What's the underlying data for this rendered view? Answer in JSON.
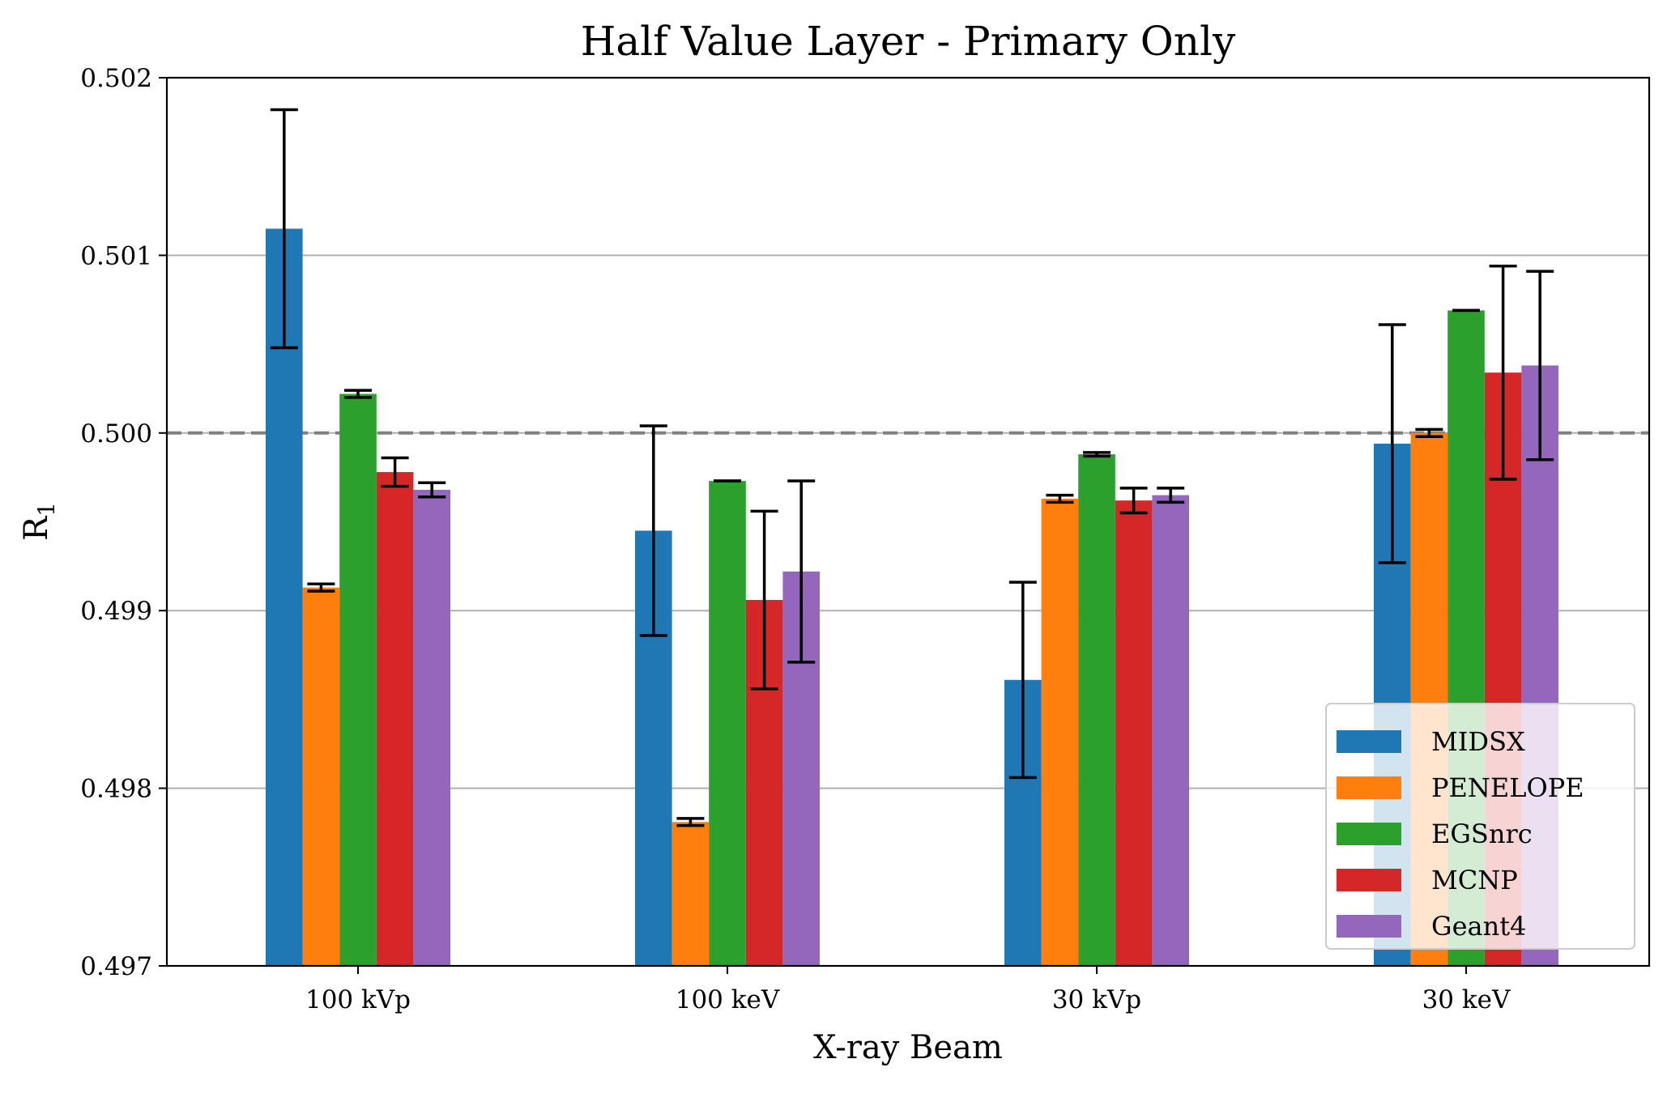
{
  "chart_data": {
    "type": "bar",
    "title": "Half Value Layer - Primary Only",
    "xlabel": "X-ray Beam",
    "ylabel": "R",
    "ylabel_subscript": "1",
    "categories": [
      "100 kVp",
      "100 keV",
      "30 kVp",
      "30 keV"
    ],
    "ylim": [
      0.497,
      0.502
    ],
    "yticks": [
      "0.497",
      "0.498",
      "0.499",
      "0.500",
      "0.501",
      "0.502"
    ],
    "reference_line": 0.5,
    "grid": "horizontal",
    "legend_position": "lower right",
    "series": [
      {
        "name": "MIDSX",
        "color": "#1f77b4",
        "values": [
          0.50115,
          0.49945,
          0.49861,
          0.49994
        ],
        "errors": [
          0.00067,
          0.00059,
          0.00055,
          0.00067
        ]
      },
      {
        "name": "PENELOPE",
        "color": "#ff7f0e",
        "values": [
          0.49913,
          0.49781,
          0.49963,
          0.5
        ],
        "errors": [
          2e-05,
          2e-05,
          2e-05,
          2e-05
        ]
      },
      {
        "name": "EGSnrc",
        "color": "#2ca02c",
        "values": [
          0.50022,
          0.49973,
          0.49988,
          0.50069
        ],
        "errors": [
          2e-05,
          0.0,
          1e-05,
          0.0
        ]
      },
      {
        "name": "MCNP",
        "color": "#d62728",
        "values": [
          0.49978,
          0.49906,
          0.49962,
          0.50034
        ],
        "errors": [
          8e-05,
          0.0005,
          7e-05,
          0.0006
        ]
      },
      {
        "name": "Geant4",
        "color": "#9467bd",
        "values": [
          0.49968,
          0.49922,
          0.49965,
          0.50038
        ],
        "errors": [
          4e-05,
          0.00051,
          4e-05,
          0.00053
        ]
      }
    ]
  }
}
